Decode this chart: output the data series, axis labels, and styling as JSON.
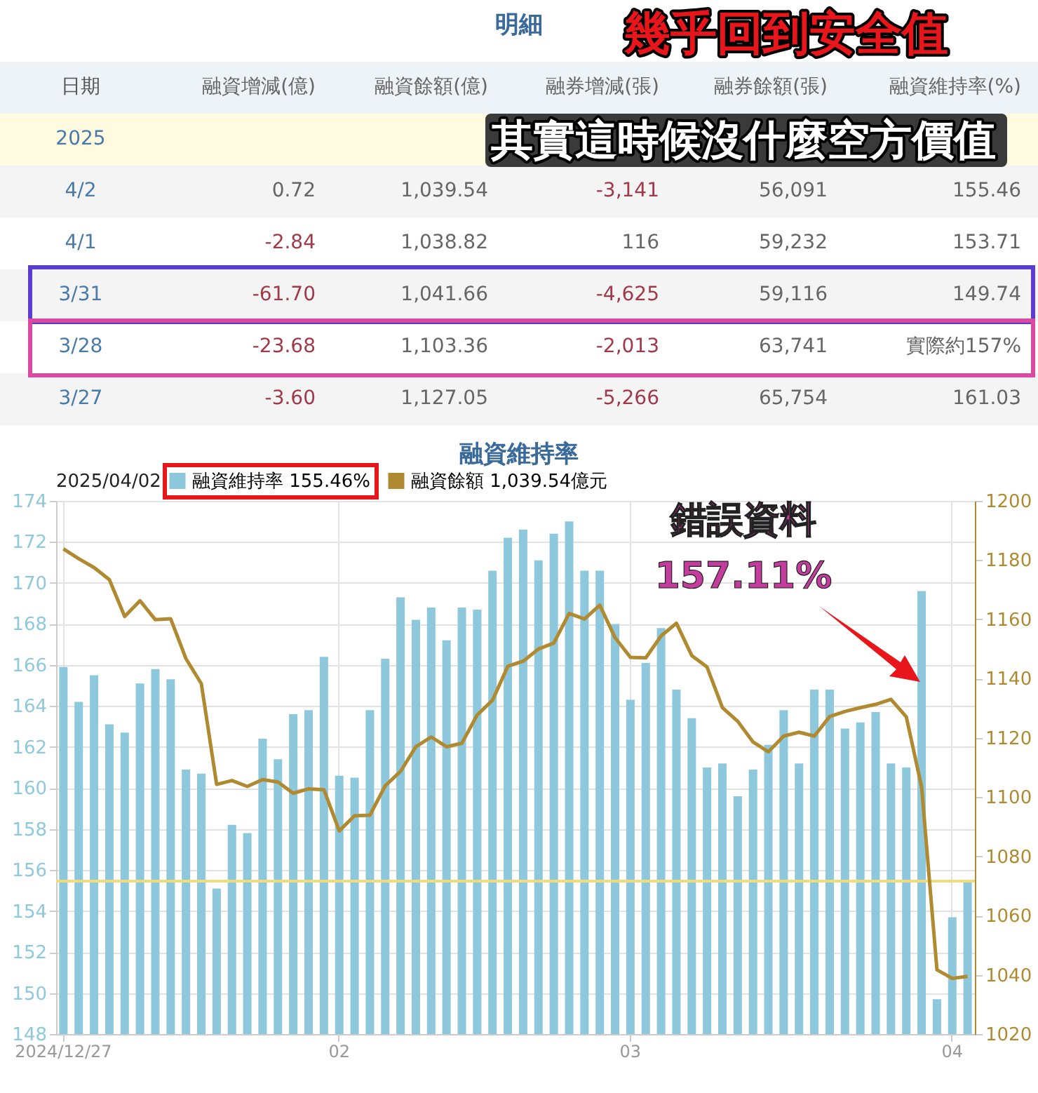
{
  "chart_data": [
    {
      "type": "other",
      "title": "明細",
      "annotations": [
        "日期",
        "融資增減(億)",
        "融資餘額(億)",
        "融券增減(張)",
        "融券餘額(張)",
        "融資維持率(%)",
        "2025",
        "4/2",
        "0.72",
        "1,039.54",
        "-3,141",
        "56,091",
        "155.46",
        "4/1",
        "-2.84",
        "1,038.82",
        "116",
        "59,232",
        "153.71",
        "3/31",
        "-61.70",
        "1,041.66",
        "-4,625",
        "59,116",
        "149.74",
        "3/28",
        "-23.68",
        "1,103.36",
        "-2,013",
        "63,741",
        "實際約157%",
        "3/27",
        "-3.60",
        "1,127.05",
        "-5,266",
        "65,754",
        "161.03",
        "幾乎回到安全值",
        "其實這時候沒什麼空方價值"
      ]
    },
    {
      "type": "bar",
      "title": "融資維持率",
      "legend_title": "2025/04/02",
      "legend": "top",
      "grid": true,
      "categories": [
        "2024/12/27",
        null,
        null,
        null,
        null,
        null,
        null,
        null,
        null,
        null,
        null,
        null,
        null,
        null,
        null,
        null,
        null,
        null,
        "02",
        null,
        null,
        null,
        null,
        null,
        null,
        null,
        null,
        null,
        null,
        null,
        null,
        null,
        null,
        null,
        null,
        null,
        null,
        "03",
        null,
        null,
        null,
        null,
        null,
        null,
        null,
        null,
        null,
        null,
        null,
        null,
        null,
        null,
        null,
        null,
        null,
        null,
        null,
        null,
        "04",
        null
      ],
      "series": [
        {
          "name": "融資維持率 155.46%",
          "color": "#8ec8dc",
          "type": "bar",
          "values": [
            165.9,
            164.2,
            165.5,
            163.1,
            162.7,
            165.1,
            165.8,
            165.3,
            160.9,
            160.7,
            155.1,
            158.2,
            157.8,
            162.4,
            161.4,
            163.6,
            163.8,
            166.4,
            160.6,
            160.5,
            163.8,
            166.3,
            169.3,
            168.2,
            168.8,
            167.2,
            168.8,
            168.7,
            170.6,
            172.2,
            172.6,
            171.1,
            172.4,
            173.0,
            170.6,
            170.6,
            168.0,
            164.3,
            166.1,
            167.8,
            164.8,
            163.4,
            161.0,
            161.2,
            159.6,
            160.9,
            162.1,
            163.8,
            161.2,
            164.8,
            164.8,
            162.9,
            163.2,
            163.7,
            161.2,
            161.0,
            169.6,
            149.7,
            153.7,
            155.5
          ]
        },
        {
          "name": "融資餘額 1,039.54億元",
          "color": "#b08a30",
          "type": "line",
          "axis": "y2",
          "values": [
            1183.8,
            1180.5,
            1177.5,
            1173.4,
            1161.0,
            1166.3,
            1159.9,
            1160.2,
            1146.7,
            1138.3,
            1104.3,
            1105.6,
            1103.6,
            1105.9,
            1105.1,
            1101.3,
            1102.8,
            1102.5,
            1088.6,
            1093.7,
            1093.9,
            1103.8,
            1108.7,
            1117.0,
            1120.3,
            1117.0,
            1118.2,
            1127.7,
            1132.7,
            1144.2,
            1145.9,
            1150.0,
            1152.0,
            1162.0,
            1160.1,
            1164.8,
            1153.8,
            1147.2,
            1147.0,
            1154.4,
            1158.7,
            1147.8,
            1143.9,
            1130.2,
            1125.6,
            1118.6,
            1115.3,
            1120.6,
            1121.9,
            1120.6,
            1127.2,
            1128.9,
            1130.2,
            1131.3,
            1133.0,
            1127.1,
            1103.4,
            1041.7,
            1038.8,
            1039.5
          ]
        }
      ],
      "ylim": [
        148,
        174
      ],
      "yticks": [
        148,
        150,
        152,
        154,
        156,
        158,
        160,
        162,
        164,
        166,
        168,
        170,
        172,
        174
      ],
      "y2lim": [
        1020,
        1200
      ],
      "y2ticks": [
        {
          "value": 1020,
          "label": "1020"
        },
        {
          "value": 1040,
          "label": "1040"
        },
        {
          "value": 1060,
          "label": "1060"
        },
        {
          "value": 1080,
          "label": "1080"
        },
        {
          "value": 1100,
          "label": "1100"
        },
        {
          "value": 1120,
          "label": "1120"
        },
        {
          "value": 1140,
          "label": "1140"
        },
        {
          "value": 1160,
          "label": "1160"
        },
        {
          "value": 1180,
          "label": "1180"
        },
        {
          "value": 1200,
          "label": "1200"
        }
      ],
      "ref_lines": [
        {
          "axis": "y",
          "value": 155.46,
          "color": "#f0dc80"
        }
      ],
      "annotations": [
        "錯誤資料",
        "157.11%"
      ]
    }
  ]
}
